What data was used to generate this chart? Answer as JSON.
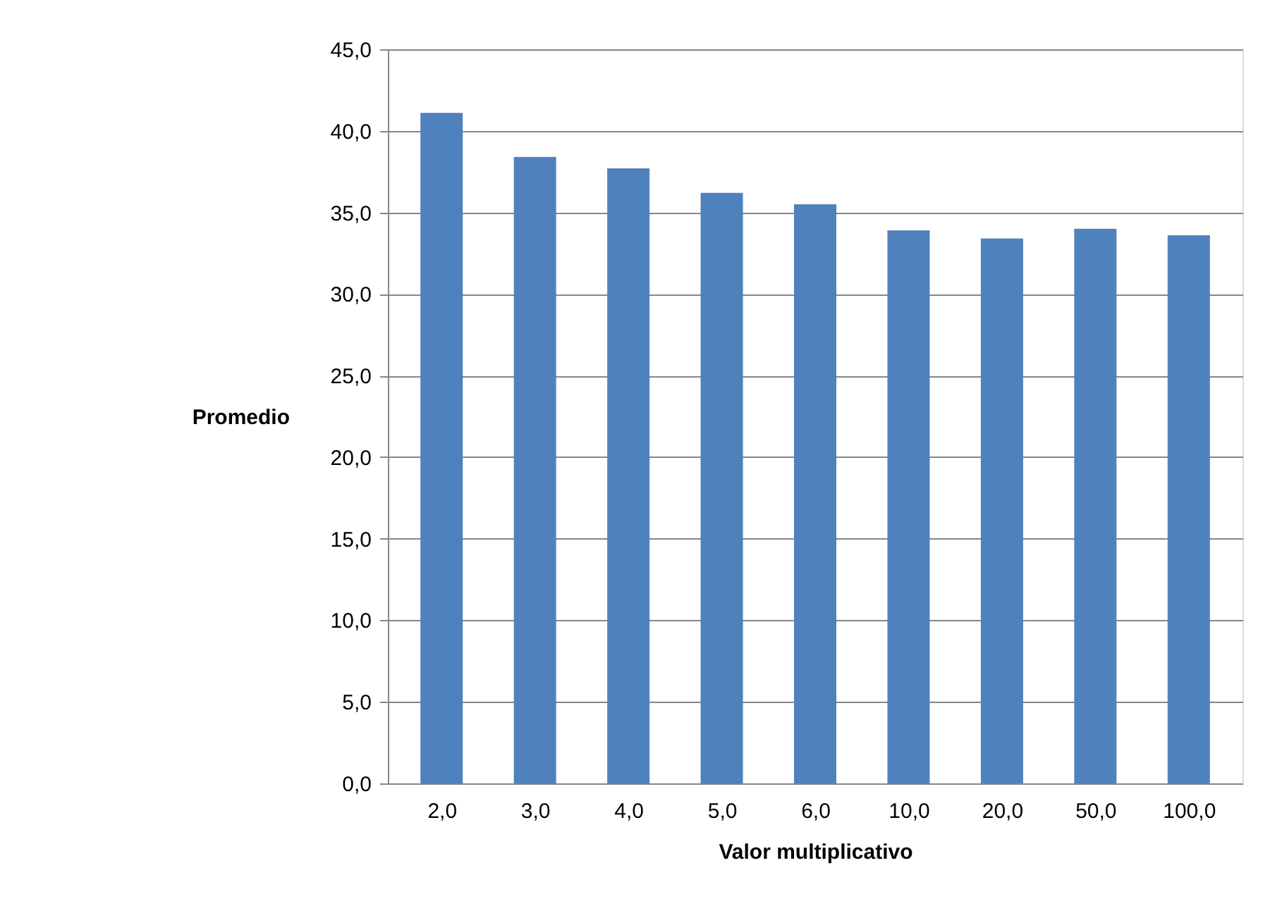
{
  "chart_data": {
    "type": "bar",
    "xlabel": "Valor multiplicativo",
    "ylabel": "Promedio",
    "categories": [
      "2,0",
      "3,0",
      "4,0",
      "5,0",
      "6,0",
      "10,0",
      "20,0",
      "50,0",
      "100,0"
    ],
    "values": [
      41.1,
      38.4,
      37.7,
      36.2,
      35.5,
      33.9,
      33.4,
      34.0,
      33.6
    ],
    "color": "#4f81bd",
    "ylim": [
      0,
      45
    ],
    "yticks": [
      {
        "value": 0,
        "label": "0,0"
      },
      {
        "value": 5,
        "label": "5,0"
      },
      {
        "value": 10,
        "label": "10,0"
      },
      {
        "value": 15,
        "label": "15,0"
      },
      {
        "value": 20,
        "label": "20,0"
      },
      {
        "value": 25,
        "label": "25,0"
      },
      {
        "value": 30,
        "label": "30,0"
      },
      {
        "value": 35,
        "label": "35,0"
      },
      {
        "value": 40,
        "label": "40,0"
      },
      {
        "value": 45,
        "label": "45,0"
      }
    ],
    "grid": "y"
  }
}
